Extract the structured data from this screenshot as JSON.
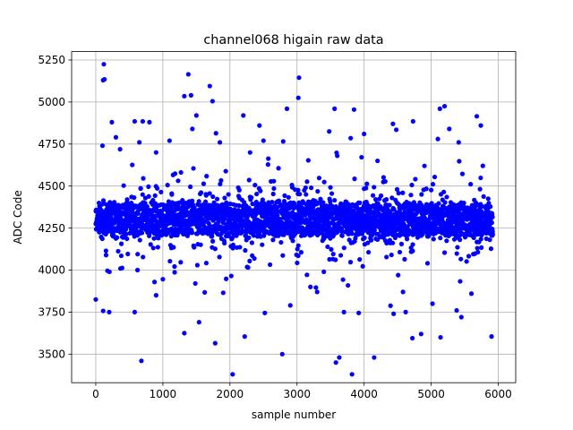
{
  "chart_data": {
    "type": "scatter",
    "title": "channel068 higain raw data",
    "xlabel": "sample number",
    "ylabel": "ADC Code",
    "xlim": [
      -360,
      6260
    ],
    "ylim": [
      3330,
      5300
    ],
    "xticks": [
      0,
      1000,
      2000,
      3000,
      4000,
      5000,
      6000
    ],
    "yticks": [
      3500,
      3750,
      4000,
      4250,
      4500,
      4750,
      5000,
      5250
    ],
    "grid": true,
    "marker_color": "#0000ff",
    "n_samples": 5920,
    "series": [
      {
        "color": "#0000ff",
        "core": {
          "x_range": [
            0,
            5920
          ],
          "y_range": [
            4200,
            4400
          ],
          "typical_center": 4300
        },
        "outliers": [
          [
            120,
            5225
          ],
          [
            110,
            5130
          ],
          [
            130,
            5135
          ],
          [
            1380,
            5165
          ],
          [
            3030,
            5145
          ],
          [
            1700,
            5095
          ],
          [
            1420,
            5040
          ],
          [
            1320,
            5035
          ],
          [
            1740,
            5005
          ],
          [
            3020,
            5025
          ],
          [
            5130,
            4960
          ],
          [
            5200,
            4975
          ],
          [
            2200,
            4920
          ],
          [
            3560,
            4960
          ],
          [
            3850,
            4955
          ],
          [
            2850,
            4960
          ],
          [
            5680,
            4915
          ],
          [
            1500,
            4920
          ],
          [
            4430,
            4870
          ],
          [
            4730,
            4885
          ],
          [
            240,
            4880
          ],
          [
            580,
            4885
          ],
          [
            700,
            4885
          ],
          [
            800,
            4880
          ],
          [
            5740,
            4860
          ],
          [
            1440,
            4840
          ],
          [
            4480,
            4835
          ],
          [
            2440,
            4860
          ],
          [
            3480,
            4825
          ],
          [
            5270,
            4840
          ],
          [
            300,
            4790
          ],
          [
            650,
            4760
          ],
          [
            1100,
            4770
          ],
          [
            1850,
            4760
          ],
          [
            2500,
            4770
          ],
          [
            3800,
            4785
          ],
          [
            4000,
            4810
          ],
          [
            5100,
            4780
          ],
          [
            5410,
            4760
          ],
          [
            100,
            4740
          ],
          [
            3600,
            4680
          ],
          [
            4200,
            4650
          ],
          [
            2300,
            4700
          ],
          [
            900,
            4700
          ],
          [
            4900,
            4620
          ],
          [
            2020,
            3965
          ],
          [
            3400,
            3990
          ],
          [
            3820,
            3380
          ],
          [
            5450,
            3720
          ],
          [
            3700,
            3750
          ],
          [
            4150,
            3480
          ],
          [
            3630,
            3480
          ],
          [
            3580,
            3450
          ],
          [
            2780,
            3500
          ],
          [
            680,
            3460
          ],
          [
            2040,
            3380
          ],
          [
            1780,
            3565
          ],
          [
            2220,
            3605
          ],
          [
            4720,
            3595
          ],
          [
            5140,
            3600
          ],
          [
            5900,
            3605
          ],
          [
            4850,
            3620
          ],
          [
            1320,
            3625
          ],
          [
            580,
            3750
          ],
          [
            2900,
            3790
          ],
          [
            3920,
            3745
          ],
          [
            4440,
            3740
          ],
          [
            4620,
            3750
          ],
          [
            5020,
            3800
          ],
          [
            5380,
            3760
          ],
          [
            200,
            3750
          ],
          [
            900,
            3850
          ],
          [
            1540,
            3690
          ],
          [
            1900,
            3865
          ],
          [
            2520,
            3745
          ],
          [
            3300,
            3870
          ],
          [
            4580,
            3870
          ],
          [
            5600,
            3860
          ],
          [
            0,
            3825
          ],
          [
            3200,
            3900
          ]
        ]
      }
    ]
  }
}
